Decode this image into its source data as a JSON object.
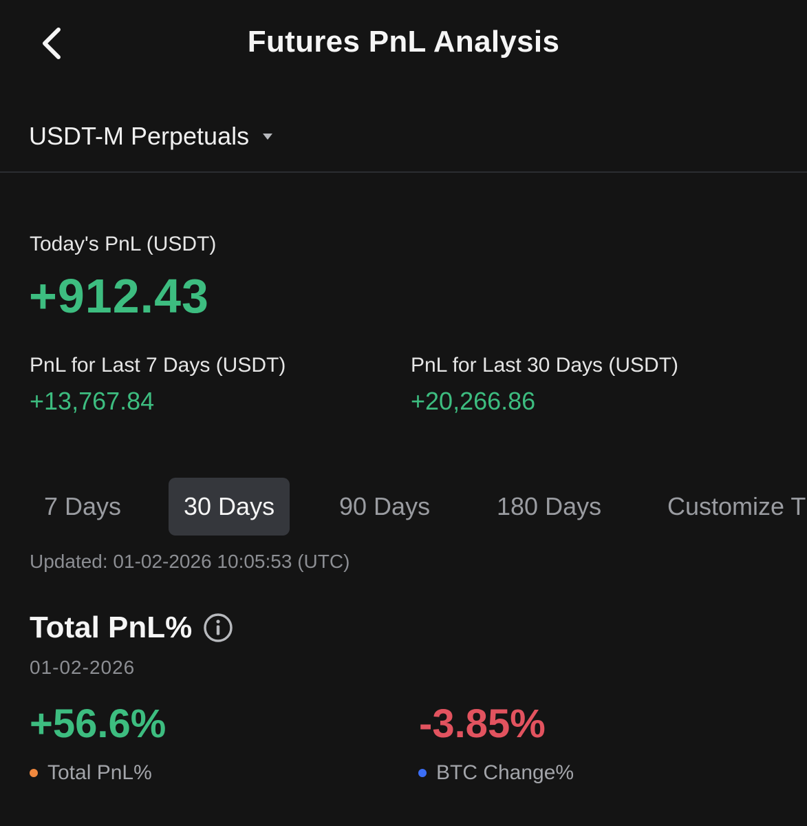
{
  "header": {
    "title": "Futures PnL Analysis"
  },
  "product": {
    "selected": "USDT-M Perpetuals"
  },
  "today": {
    "label": "Today's PnL (USDT)",
    "value": "+912.43"
  },
  "metrics": [
    {
      "label": "PnL for Last 7 Days (USDT)",
      "value": "+13,767.84"
    },
    {
      "label": "PnL for Last 30 Days (USDT)",
      "value": "+20,266.86"
    }
  ],
  "tabs": [
    {
      "label": "7 Days",
      "active": false
    },
    {
      "label": "30 Days",
      "active": true
    },
    {
      "label": "90 Days",
      "active": false
    },
    {
      "label": "180 Days",
      "active": false
    },
    {
      "label": "Customize T",
      "active": false
    }
  ],
  "updated": "Updated: 01-02-2026 10:05:53 (UTC)",
  "total_pnl": {
    "title": "Total PnL%",
    "date": "01-02-2026",
    "pnl_value": "+56.6%",
    "btc_value": "-3.85%",
    "legend": [
      {
        "label": "Total PnL%",
        "color": "#f0883e"
      },
      {
        "label": "BTC Change%",
        "color": "#3b6ef5"
      }
    ]
  },
  "colors": {
    "positive": "#3dbd80",
    "negative": "#e2535f",
    "background": "#141414"
  },
  "icons": {
    "back": "chevron-left-icon",
    "dropdown": "caret-down-icon",
    "info": "info-icon"
  }
}
